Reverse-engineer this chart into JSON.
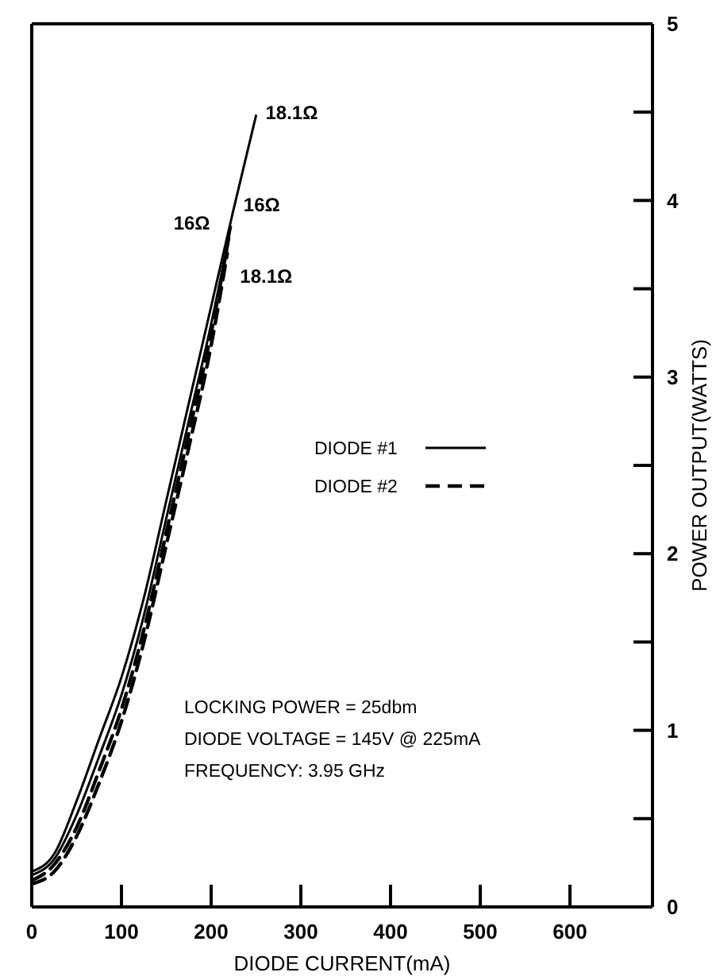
{
  "chart_data": {
    "type": "line",
    "xlabel": "DIODE CURRENT(mA)",
    "ylabel": "POWER OUTPUT(WATTS)",
    "xlim": [
      0,
      692
    ],
    "xticks": [
      0,
      100,
      200,
      300,
      400,
      500,
      600
    ],
    "ylim": [
      0,
      5
    ],
    "yticks": [
      0,
      {
        "value": 0.5,
        "label": null
      },
      1,
      {
        "value": 1.5,
        "label": null
      },
      2,
      {
        "value": 2.5,
        "label": null
      },
      3,
      {
        "value": 3.5,
        "label": null
      },
      4,
      {
        "value": 4.5,
        "label": null
      },
      5
    ],
    "grid": false,
    "legend": "right",
    "marker": "none",
    "series": [
      {
        "name": "DIODE #1",
        "color": "#000000",
        "line_style": "solid",
        "x": [
          0,
          25,
          50,
          75,
          100,
          125,
          150,
          175,
          200,
          225,
          250
        ],
        "values": [
          0.2,
          0.3,
          0.6,
          0.95,
          1.3,
          1.75,
          2.3,
          2.85,
          3.4,
          3.95,
          4.48
        ]
      },
      {
        "color": "#000000",
        "line_style": "solid",
        "x": [
          0,
          25,
          50,
          75,
          100,
          125,
          150,
          175,
          200,
          222
        ],
        "values": [
          0.18,
          0.27,
          0.52,
          0.85,
          1.2,
          1.65,
          2.2,
          2.75,
          3.3,
          3.85
        ]
      },
      {
        "name": "DIODE #2",
        "color": "#000000",
        "line_style": "dashed",
        "x": [
          0,
          25,
          50,
          75,
          100,
          125,
          150,
          175,
          200,
          220
        ],
        "values": [
          0.15,
          0.24,
          0.45,
          0.77,
          1.12,
          1.57,
          2.12,
          2.68,
          3.25,
          3.8
        ]
      },
      {
        "color": "#000000",
        "line_style": "dashed",
        "x": [
          0,
          25,
          50,
          75,
          100,
          125,
          150,
          175,
          200,
          218
        ],
        "values": [
          0.13,
          0.2,
          0.4,
          0.7,
          1.05,
          1.5,
          2.05,
          2.6,
          3.18,
          3.7
        ]
      }
    ],
    "annotations": [
      {
        "text": "18.1Ω",
        "x": 250,
        "y": 4.48
      },
      {
        "text": "16Ω",
        "x": 222,
        "y": 3.85
      },
      {
        "text": "16Ω",
        "x": 220,
        "y": 3.8
      },
      {
        "text": "18.1Ω",
        "x": 218,
        "y": 3.7
      },
      "LOCKING POWER = 25dbm",
      "DIODE VOLTAGE = 145V @ 225mA",
      "FREQUENCY: 3.95 GHz"
    ]
  }
}
